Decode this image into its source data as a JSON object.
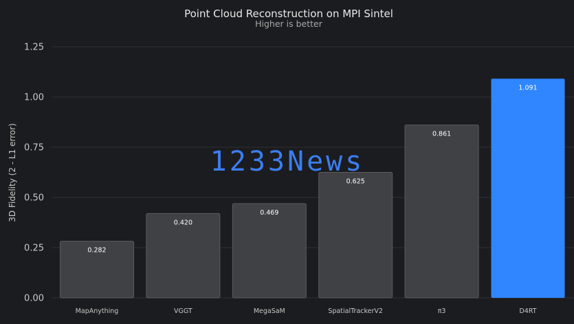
{
  "chart_data": {
    "type": "bar",
    "title": "Point Cloud Reconstruction on MPI Sintel",
    "subtitle": "Higher is better",
    "ylabel": "3D Fidelity (2 - L1 error)",
    "xlabel": "",
    "ylim": [
      0,
      1.25
    ],
    "yticks": [
      "0.00",
      "0.25",
      "0.50",
      "0.75",
      "1.00",
      "1.25"
    ],
    "grid": true,
    "categories": [
      "MapAnything",
      "VGGT",
      "MegaSaM",
      "SpatialTrackerV2",
      "π3",
      "D4RT"
    ],
    "values": [
      0.282,
      0.42,
      0.469,
      0.625,
      0.861,
      1.091
    ],
    "value_labels": [
      "0.282",
      "0.420",
      "0.469",
      "0.625",
      "0.861",
      "1.091"
    ],
    "highlight_index": 5
  },
  "colors": {
    "background": "#1b1c1f",
    "bar_default": "#404144",
    "bar_highlight": "#2f86ff",
    "grid": "#2e3034"
  },
  "watermark": {
    "text": "1233News",
    "color": "#3b7ef0"
  }
}
